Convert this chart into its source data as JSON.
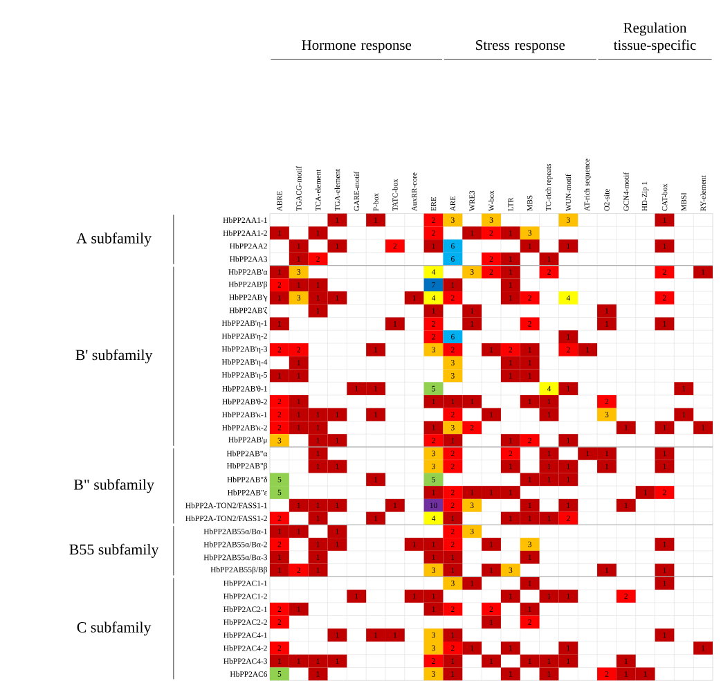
{
  "chart_data": {
    "type": "heatmap",
    "categories": [
      "ABRE",
      "TGACG-motif",
      "TCA-element",
      "TGA-element",
      "GARE-motif",
      "P-box",
      "TATC-box",
      "AuxRR-core",
      "ERE",
      "ARE",
      "WRE3",
      "W-box",
      "LTR",
      "MBS",
      "TC-rich repeats",
      "WUN-motif",
      "AT-rich sequence",
      "O2-site",
      "GCN4-motif",
      "HD-Zip 1",
      "CAT-box",
      "MBSI",
      "RY-element"
    ],
    "y_categories": [
      "HbPP2AA1-1",
      "HbPP2AA1-2",
      "HbPP2AA2",
      "HbPP2AA3",
      "HbPP2AB'α",
      "HbPP2AB'β",
      "HbPP2AB'γ",
      "HbPP2AB'ζ",
      "HbPP2AB'η-1",
      "HbPP2AB'η-2",
      "HbPP2AB'η-3",
      "HbPP2AB'η-4",
      "HbPP2AB'η-5",
      "HbPP2AB'θ-1",
      "HbPP2AB'θ-2",
      "HbPP2AB'κ-1",
      "HbPP2AB'κ-2",
      "HbPP2AB'μ",
      "HbPP2AB\"α",
      "HbPP2AB\"β",
      "HbPP2AB\"δ",
      "HbPP2AB\"ε",
      "HbPP2A-TON2/FASS1-1",
      "HbPP2A-TON2/FASS1-2",
      "HbPP2AB55α/Bα-1",
      "HbPP2AB55α/Bα-2",
      "HbPP2AB55α/Bα-3",
      "HbPP2AB55β/Bβ",
      "HbPP2AC1-1",
      "HbPP2AC1-2",
      "HbPP2AC2-1",
      "HbPP2AC2-2",
      "HbPP2AC4-1",
      "HbPP2AC4-2",
      "HbPP2AC4-3",
      "HbPP2AC6"
    ],
    "cells": [
      [
        null,
        null,
        null,
        1,
        null,
        1,
        null,
        null,
        2,
        3,
        null,
        3,
        null,
        null,
        null,
        3,
        null,
        null,
        null,
        null,
        1,
        null,
        null
      ],
      [
        1,
        null,
        1,
        null,
        null,
        null,
        null,
        null,
        2,
        null,
        1,
        2,
        1,
        3,
        null,
        null,
        null,
        null,
        null,
        null,
        null,
        null,
        null
      ],
      [
        null,
        1,
        null,
        1,
        null,
        null,
        2,
        null,
        1,
        6,
        null,
        null,
        null,
        1,
        null,
        1,
        null,
        null,
        null,
        null,
        1,
        null,
        null
      ],
      [
        null,
        1,
        2,
        null,
        null,
        null,
        null,
        null,
        null,
        6,
        null,
        2,
        1,
        null,
        1,
        null,
        null,
        null,
        null,
        null,
        null,
        null,
        null
      ],
      [
        1,
        3,
        null,
        null,
        null,
        null,
        null,
        null,
        4,
        null,
        3,
        2,
        1,
        null,
        2,
        null,
        null,
        null,
        null,
        null,
        2,
        null,
        1
      ],
      [
        2,
        1,
        1,
        null,
        null,
        null,
        null,
        null,
        7,
        1,
        null,
        null,
        1,
        null,
        null,
        null,
        null,
        null,
        null,
        null,
        null,
        null,
        null
      ],
      [
        1,
        3,
        1,
        1,
        null,
        null,
        null,
        1,
        4,
        2,
        null,
        null,
        1,
        2,
        null,
        4,
        null,
        null,
        null,
        null,
        2,
        null,
        null
      ],
      [
        null,
        null,
        1,
        null,
        null,
        null,
        null,
        null,
        1,
        null,
        1,
        null,
        null,
        null,
        null,
        null,
        null,
        1,
        null,
        null,
        null,
        null,
        null
      ],
      [
        1,
        null,
        null,
        null,
        null,
        null,
        1,
        null,
        2,
        null,
        1,
        null,
        null,
        2,
        null,
        null,
        null,
        1,
        null,
        null,
        1,
        null,
        null
      ],
      [
        null,
        null,
        null,
        null,
        null,
        null,
        null,
        null,
        2,
        6,
        null,
        null,
        null,
        null,
        null,
        1,
        null,
        null,
        null,
        null,
        null,
        null,
        null
      ],
      [
        2,
        2,
        null,
        null,
        null,
        1,
        null,
        null,
        3,
        2,
        null,
        1,
        2,
        1,
        null,
        2,
        1,
        null,
        null,
        null,
        null,
        null,
        null
      ],
      [
        null,
        1,
        null,
        null,
        null,
        null,
        null,
        null,
        null,
        3,
        null,
        null,
        1,
        1,
        null,
        null,
        null,
        null,
        null,
        null,
        null,
        null,
        null
      ],
      [
        1,
        1,
        null,
        null,
        null,
        null,
        null,
        null,
        null,
        3,
        null,
        null,
        1,
        1,
        null,
        null,
        null,
        null,
        null,
        null,
        null,
        null,
        null
      ],
      [
        null,
        null,
        null,
        null,
        1,
        1,
        null,
        null,
        5,
        null,
        null,
        null,
        null,
        null,
        4,
        1,
        null,
        null,
        null,
        null,
        null,
        1,
        null
      ],
      [
        2,
        1,
        null,
        null,
        null,
        null,
        null,
        null,
        1,
        1,
        1,
        null,
        null,
        1,
        1,
        null,
        null,
        2,
        null,
        null,
        null,
        null,
        null
      ],
      [
        2,
        1,
        1,
        1,
        null,
        1,
        null,
        null,
        null,
        2,
        null,
        1,
        null,
        null,
        1,
        null,
        null,
        3,
        null,
        null,
        null,
        1,
        null
      ],
      [
        2,
        1,
        1,
        null,
        null,
        null,
        null,
        null,
        1,
        3,
        2,
        null,
        null,
        null,
        null,
        null,
        null,
        null,
        1,
        null,
        1,
        null,
        1
      ],
      [
        3,
        null,
        1,
        1,
        null,
        null,
        null,
        null,
        2,
        1,
        null,
        null,
        1,
        2,
        null,
        1,
        null,
        null,
        null,
        null,
        null,
        null,
        null
      ],
      [
        null,
        null,
        1,
        null,
        null,
        null,
        null,
        null,
        3,
        2,
        null,
        null,
        2,
        null,
        1,
        null,
        1,
        1,
        null,
        null,
        1,
        null,
        null
      ],
      [
        null,
        null,
        1,
        1,
        null,
        null,
        null,
        null,
        3,
        2,
        null,
        null,
        1,
        null,
        1,
        1,
        null,
        1,
        null,
        null,
        1,
        null,
        null
      ],
      [
        5,
        null,
        null,
        null,
        null,
        1,
        null,
        null,
        5,
        null,
        null,
        null,
        null,
        1,
        1,
        1,
        null,
        null,
        null,
        null,
        null,
        null,
        null
      ],
      [
        5,
        null,
        null,
        null,
        null,
        null,
        null,
        null,
        1,
        2,
        1,
        1,
        1,
        null,
        null,
        null,
        null,
        null,
        null,
        1,
        2,
        null,
        null
      ],
      [
        null,
        1,
        1,
        1,
        null,
        null,
        1,
        null,
        10,
        2,
        3,
        null,
        null,
        1,
        null,
        1,
        null,
        null,
        1,
        null,
        null,
        null,
        null
      ],
      [
        2,
        null,
        1,
        null,
        null,
        1,
        null,
        null,
        4,
        1,
        null,
        null,
        1,
        1,
        1,
        2,
        null,
        null,
        null,
        null,
        null,
        null,
        null
      ],
      [
        1,
        1,
        null,
        1,
        null,
        null,
        null,
        null,
        null,
        2,
        3,
        null,
        null,
        null,
        null,
        null,
        null,
        null,
        null,
        null,
        null,
        null,
        null
      ],
      [
        2,
        null,
        1,
        1,
        null,
        null,
        null,
        1,
        1,
        2,
        null,
        1,
        null,
        3,
        null,
        null,
        null,
        null,
        null,
        null,
        1,
        null,
        null
      ],
      [
        1,
        null,
        1,
        null,
        null,
        null,
        null,
        null,
        1,
        1,
        null,
        null,
        null,
        1,
        null,
        null,
        null,
        null,
        null,
        null,
        null,
        null,
        null
      ],
      [
        1,
        2,
        1,
        null,
        null,
        null,
        null,
        null,
        3,
        1,
        null,
        1,
        3,
        null,
        null,
        null,
        null,
        1,
        null,
        null,
        1,
        null,
        null
      ],
      [
        null,
        null,
        null,
        null,
        null,
        null,
        null,
        null,
        null,
        3,
        1,
        null,
        null,
        1,
        null,
        null,
        null,
        null,
        null,
        null,
        1,
        null,
        null
      ],
      [
        null,
        null,
        null,
        null,
        1,
        null,
        null,
        1,
        1,
        null,
        null,
        null,
        1,
        null,
        1,
        1,
        null,
        null,
        2,
        null,
        null,
        null,
        null
      ],
      [
        2,
        1,
        null,
        null,
        null,
        null,
        null,
        null,
        1,
        2,
        null,
        2,
        null,
        1,
        null,
        null,
        null,
        null,
        null,
        null,
        null,
        null,
        null
      ],
      [
        2,
        null,
        null,
        null,
        null,
        null,
        null,
        null,
        null,
        null,
        null,
        1,
        null,
        2,
        null,
        null,
        null,
        null,
        null,
        null,
        null,
        null,
        null
      ],
      [
        null,
        null,
        null,
        1,
        null,
        1,
        1,
        null,
        3,
        1,
        null,
        null,
        null,
        null,
        null,
        null,
        null,
        null,
        null,
        null,
        1,
        null,
        null
      ],
      [
        2,
        null,
        null,
        null,
        null,
        null,
        null,
        null,
        3,
        2,
        1,
        null,
        1,
        null,
        null,
        1,
        null,
        null,
        null,
        null,
        null,
        null,
        1
      ],
      [
        1,
        1,
        1,
        1,
        null,
        null,
        null,
        null,
        2,
        1,
        null,
        1,
        null,
        1,
        1,
        1,
        null,
        null,
        1,
        null,
        null,
        null,
        null
      ],
      [
        5,
        null,
        1,
        null,
        null,
        null,
        null,
        null,
        3,
        1,
        null,
        null,
        1,
        null,
        1,
        null,
        null,
        2,
        1,
        1,
        null,
        null,
        null
      ]
    ],
    "data_labels": true,
    "grid": true,
    "annotations": [
      "Hormone response",
      "Stress response",
      "Regulation tissue-specific",
      "A subfamily",
      "B' subfamily",
      "B\" subfamily",
      "B55 subfamily",
      "C subfamily"
    ]
  }
}
